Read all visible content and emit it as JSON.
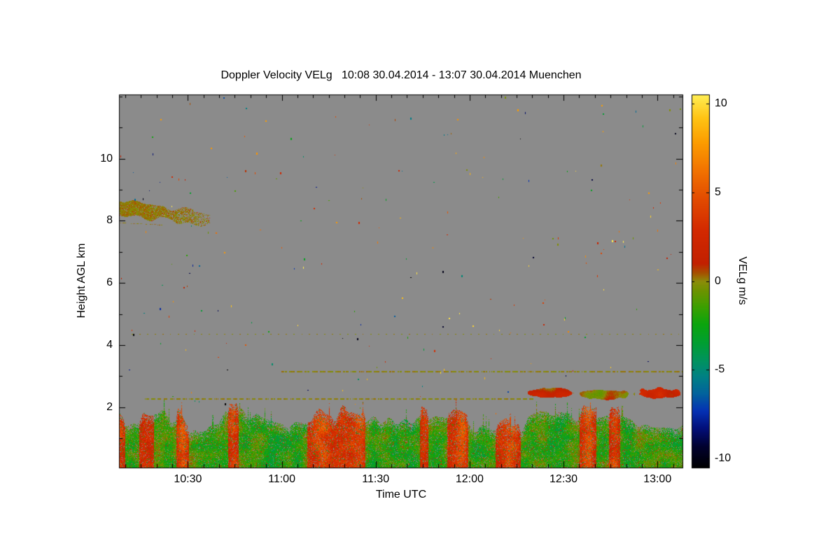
{
  "chart_data": {
    "type": "heatmap",
    "title": "Doppler Velocity VELg   10:08 30.04.2014 - 13:07 30.04.2014 Muenchen",
    "xlabel": "Time UTC",
    "ylabel": "Height AGL km",
    "no_data_color": "#8b8b8b",
    "x_axis": {
      "start_minutes": 608,
      "end_minutes": 788,
      "major_ticks": [
        {
          "minutes": 630,
          "label": "10:30"
        },
        {
          "minutes": 660,
          "label": "11:00"
        },
        {
          "minutes": 690,
          "label": "11:30"
        },
        {
          "minutes": 720,
          "label": "12:00"
        },
        {
          "minutes": 750,
          "label": "12:30"
        },
        {
          "minutes": 780,
          "label": "13:00"
        }
      ],
      "minor_tick_minutes": 5
    },
    "y_axis": {
      "min_km": 0.05,
      "max_km": 12.07,
      "major_ticks": [
        {
          "km": 2,
          "label": "2"
        },
        {
          "km": 4,
          "label": "4"
        },
        {
          "km": 6,
          "label": "6"
        },
        {
          "km": 8,
          "label": "8"
        },
        {
          "km": 10,
          "label": "10"
        }
      ],
      "minor_tick_km": 1
    },
    "colorbar": {
      "label": "VELg m/s",
      "min": -10.5,
      "max": 10.5,
      "ticks": [
        {
          "v": 10,
          "label": "10"
        },
        {
          "v": 5,
          "label": "5"
        },
        {
          "v": 0,
          "label": "0"
        },
        {
          "v": -5,
          "label": "-5"
        },
        {
          "v": -10,
          "label": "-10"
        }
      ],
      "stops": [
        [
          -10.5,
          "#000000"
        ],
        [
          -9.3,
          "#01012f"
        ],
        [
          -8.3,
          "#020e78"
        ],
        [
          -7.3,
          "#0431b4"
        ],
        [
          -6.3,
          "#02639c"
        ],
        [
          -5.4,
          "#008086"
        ],
        [
          -4.5,
          "#009260"
        ],
        [
          -3.5,
          "#009e33"
        ],
        [
          -2.4,
          "#0ba40d"
        ],
        [
          -1.4,
          "#3f9f00"
        ],
        [
          -0.5,
          "#6f9200"
        ],
        [
          0,
          "#8c8c0a"
        ],
        [
          0.45,
          "#a55200"
        ],
        [
          1,
          "#c22000"
        ],
        [
          2.8,
          "#d22800"
        ],
        [
          4.6,
          "#e24a00"
        ],
        [
          6.2,
          "#f17200"
        ],
        [
          7.8,
          "#fc9c00"
        ],
        [
          9.2,
          "#ffc414"
        ],
        [
          10.5,
          "#ffee55"
        ]
      ]
    },
    "features": {
      "boundary_layer": {
        "description": "turbulent convective layer below ~1.5 km AGL, green downdrafts ~-2 m/s mixed with red updraft plumes ~+2 to +4 m/s",
        "top_km_mean": 1.42,
        "base_velocity": -1.9,
        "updraft_velocity": 2.3
      },
      "cloud_band": {
        "description": "cirrus/aerosol band near 8-8.5 km from 10:08 to ~10:37, near-zero olive velocities",
        "t0": 608,
        "t1": 637,
        "h_start": 8.45,
        "h_end": 8.05,
        "thickness_km": 0.4,
        "velocity": 0.1
      },
      "aerosol_layers": [
        {
          "height_km": 2.25,
          "t0": 616,
          "t1": 741,
          "dash_on": 6,
          "dash_off": 3,
          "velocity": 0.0
        },
        {
          "height_km": 3.15,
          "t0": 659,
          "t1": 788,
          "dash_on": 8,
          "dash_off": 3,
          "velocity": 0.0
        },
        {
          "height_km": 4.35,
          "t0": 610,
          "t1": 788,
          "dash_on": 2,
          "dash_off": 9,
          "velocity": 0.0
        }
      ],
      "cloud_patches": [
        {
          "t0": 738,
          "t1": 752,
          "h0": 2.32,
          "h1": 2.62,
          "velocity": 1.3
        },
        {
          "t0": 754,
          "t1": 772,
          "h0": 2.26,
          "h1": 2.56,
          "velocity": 0.4
        },
        {
          "t0": 774,
          "t1": 787,
          "h0": 2.3,
          "h1": 2.62,
          "velocity": 2.2
        }
      ],
      "speckles": {
        "count": 210,
        "min_km": 1.7,
        "velocity_range": [
          -10.5,
          10.5
        ]
      }
    }
  }
}
